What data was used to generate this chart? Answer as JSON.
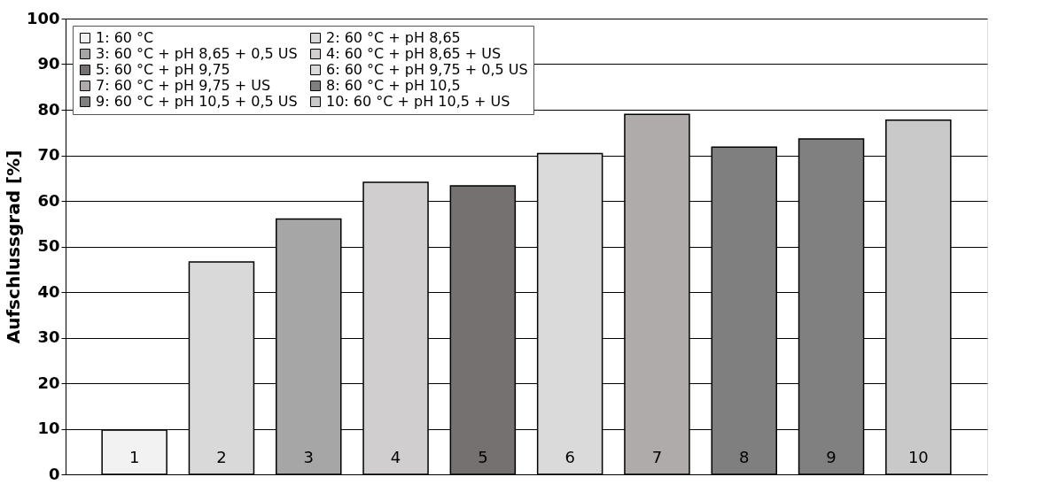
{
  "chart_data": {
    "type": "bar",
    "ylabel": "Aufschlussgrad [%]",
    "categories": [
      "1",
      "2",
      "3",
      "4",
      "5",
      "6",
      "7",
      "8",
      "9",
      "10"
    ],
    "series": [
      {
        "name": "1: 60 °C",
        "color": "#f2f2f2",
        "values": [
          9.7,
          null,
          null,
          null,
          null,
          null,
          null,
          null,
          null,
          null
        ]
      },
      {
        "name": "2: 60 °C + pH 8,65",
        "color": "#d9d9d9",
        "values": [
          null,
          46.6,
          null,
          null,
          null,
          null,
          null,
          null,
          null,
          null
        ]
      },
      {
        "name": "3: 60 °C + pH 8,65 + 0,5 US",
        "color": "#a6a6a6",
        "values": [
          null,
          null,
          56.0,
          null,
          null,
          null,
          null,
          null,
          null,
          null
        ]
      },
      {
        "name": "4: 60 °C + pH 8,65 + US",
        "color": "#d0cece",
        "values": [
          null,
          null,
          null,
          64.1,
          null,
          null,
          null,
          null,
          null,
          null
        ]
      },
      {
        "name": "5: 60 °C + pH 9,75",
        "color": "#757171",
        "values": [
          null,
          null,
          null,
          null,
          63.3,
          null,
          null,
          null,
          null,
          null
        ]
      },
      {
        "name": "6: 60 °C + pH 9,75 + 0,5 US",
        "color": "#dadada",
        "values": [
          null,
          null,
          null,
          null,
          null,
          70.4,
          null,
          null,
          null,
          null
        ]
      },
      {
        "name": "7: 60 °C + pH 9,75 + US",
        "color": "#afabab",
        "values": [
          null,
          null,
          null,
          null,
          null,
          null,
          79.0,
          null,
          null,
          null
        ]
      },
      {
        "name": "8: 60 °C + pH 10,5",
        "color": "#7f7f7f",
        "values": [
          null,
          null,
          null,
          null,
          null,
          null,
          null,
          71.8,
          null,
          null
        ]
      },
      {
        "name": "9: 60 °C + pH 10,5 + 0,5 US",
        "color": "#808080",
        "values": [
          null,
          null,
          null,
          null,
          null,
          null,
          null,
          null,
          73.6,
          null
        ]
      },
      {
        "name": "10: 60 °C + pH 10,5 + US",
        "color": "#c9c9c9",
        "values": [
          null,
          null,
          null,
          null,
          null,
          null,
          null,
          null,
          null,
          77.7
        ]
      }
    ],
    "ylim": [
      0,
      100
    ],
    "yticks": [
      0,
      10,
      20,
      30,
      40,
      50,
      60,
      70,
      80,
      90,
      100
    ],
    "grid": "y",
    "legend": "top left"
  }
}
